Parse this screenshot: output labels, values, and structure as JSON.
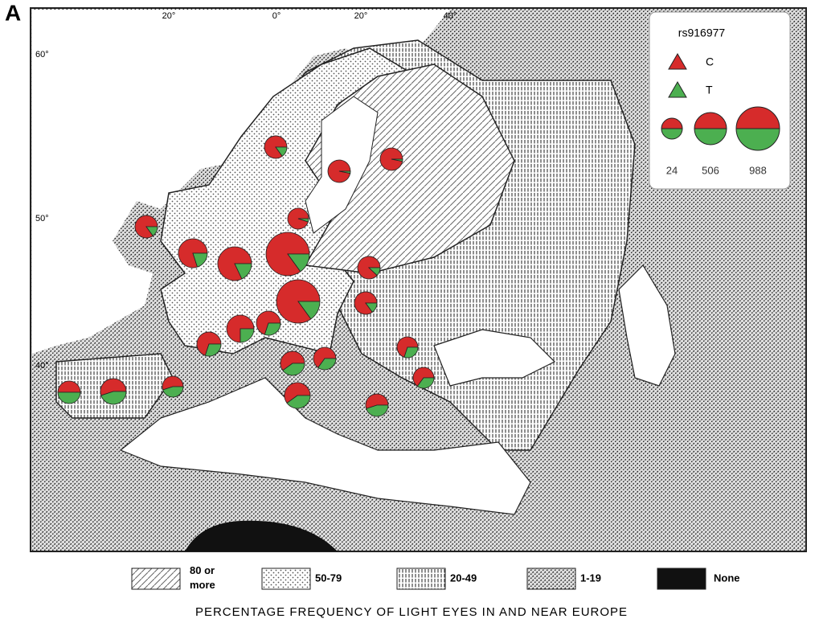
{
  "panel_label": "A",
  "longitude_labels": [
    "20°",
    "0°",
    "20°",
    "40°"
  ],
  "latitude_labels": [
    "60°",
    "50°",
    "40°"
  ],
  "pie_legend": {
    "title": "rs916977",
    "alleles": [
      {
        "name": "C",
        "color": "#d62b2b"
      },
      {
        "name": "T",
        "color": "#4caf50"
      }
    ],
    "sizes": [
      24,
      506,
      988
    ]
  },
  "pies": [
    {
      "c": 85,
      "n": 93
    },
    {
      "c": 97,
      "n": 93
    },
    {
      "c": 97,
      "n": 93
    },
    {
      "c": 95,
      "n": 24
    },
    {
      "c": 85,
      "n": 93
    },
    {
      "c": 80,
      "n": 368
    },
    {
      "c": 82,
      "n": 575
    },
    {
      "c": 85,
      "n": 988
    },
    {
      "c": 88,
      "n": 93
    },
    {
      "c": 85,
      "n": 988
    },
    {
      "c": 85,
      "n": 93
    },
    {
      "c": 75,
      "n": 299
    },
    {
      "c": 70,
      "n": 162
    },
    {
      "c": 70,
      "n": 162
    },
    {
      "c": 60,
      "n": 162
    },
    {
      "c": 65,
      "n": 93
    },
    {
      "c": 70,
      "n": 24
    },
    {
      "c": 65,
      "n": 24
    },
    {
      "c": 55,
      "n": 24
    },
    {
      "c": 55,
      "n": 231
    },
    {
      "c": 50,
      "n": 93
    },
    {
      "c": 60,
      "n": 231
    },
    {
      "c": 55,
      "n": 93
    }
  ],
  "frequency_legend": [
    "80 or more",
    "50-79",
    "20-49",
    "1-19",
    "None"
  ],
  "caption": "PERCENTAGE FREQUENCY OF LIGHT EYES IN AND NEAR EUROPE"
}
